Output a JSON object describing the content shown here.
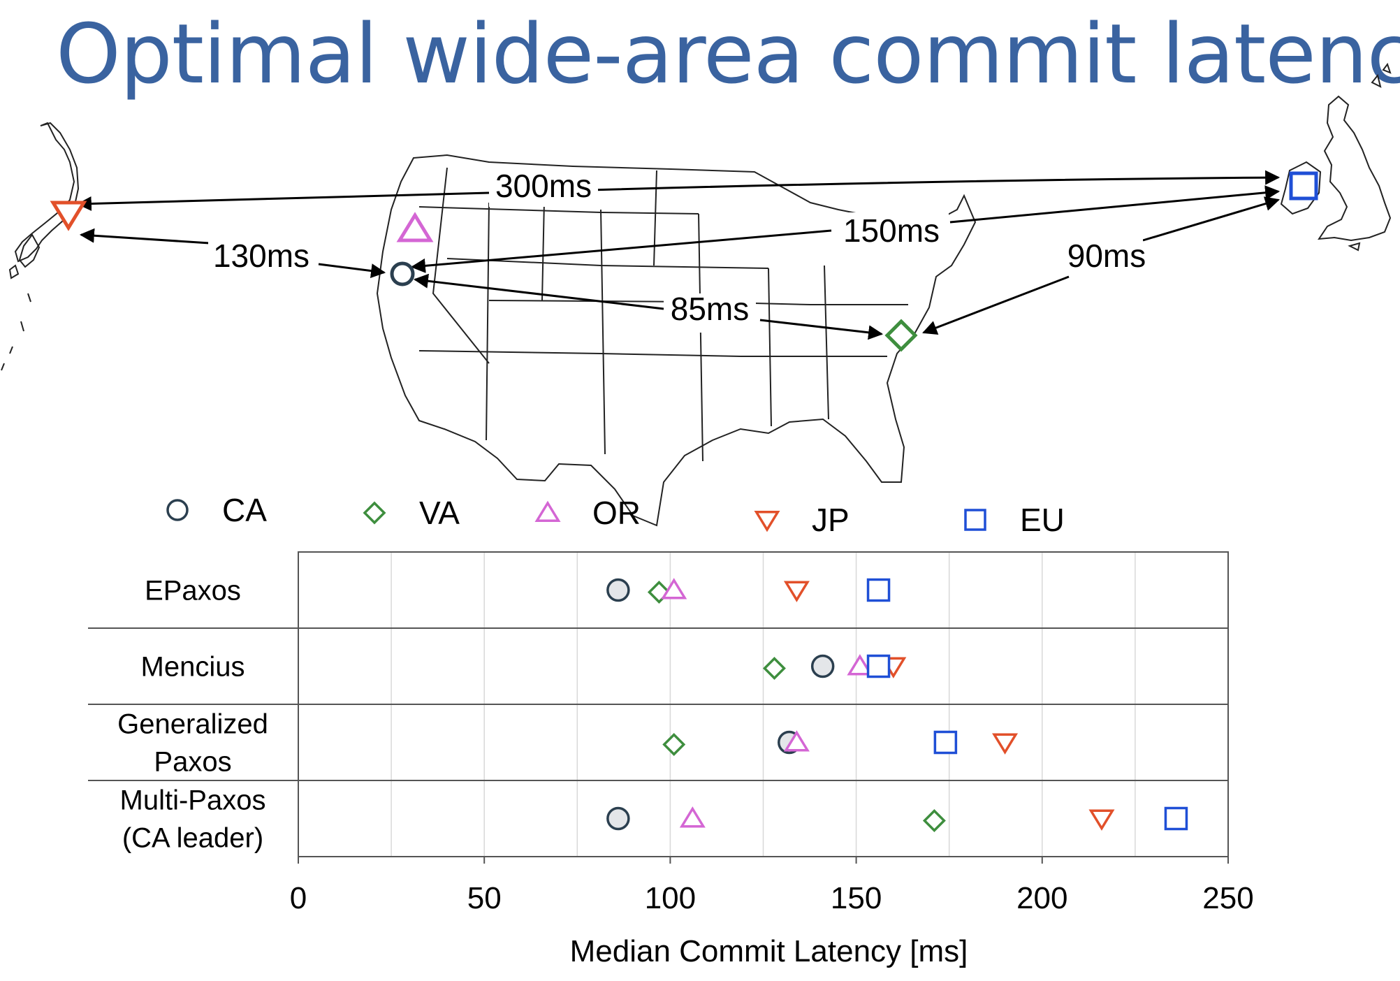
{
  "title": "Optimal wide-area commit latency",
  "colors": {
    "title": "#3a63a0",
    "CA": "#2b3f4f",
    "VA": "#3e8e3e",
    "OR": "#d466d4",
    "JP": "#e2502a",
    "EU": "#1f4fd6"
  },
  "map": {
    "sites": [
      {
        "id": "JP",
        "shape": "triangle-down"
      },
      {
        "id": "OR",
        "shape": "triangle-up"
      },
      {
        "id": "CA",
        "shape": "circle"
      },
      {
        "id": "VA",
        "shape": "diamond"
      },
      {
        "id": "EU",
        "shape": "square"
      }
    ],
    "links": [
      {
        "from": "JP",
        "to": "EU",
        "label": "300ms"
      },
      {
        "from": "CA",
        "to": "EU",
        "label": "150ms"
      },
      {
        "from": "JP",
        "to": "CA",
        "label": "130ms"
      },
      {
        "from": "VA",
        "to": "EU",
        "label": "90ms"
      },
      {
        "from": "CA",
        "to": "VA",
        "label": "85ms"
      }
    ]
  },
  "chart_data": {
    "type": "scatter",
    "xlabel": "Median Commit Latency [ms]",
    "ylabel": "",
    "xlim": [
      0,
      250
    ],
    "xticks": [
      0,
      50,
      100,
      150,
      200,
      250
    ],
    "categories": [
      "EPaxos",
      "Mencius",
      "Generalized Paxos",
      "Multi-Paxos (CA leader)"
    ],
    "grid": true,
    "legend": {
      "placement": "top",
      "entries": [
        {
          "name": "CA",
          "marker": "circle"
        },
        {
          "name": "VA",
          "marker": "diamond"
        },
        {
          "name": "OR",
          "marker": "triangle-up"
        },
        {
          "name": "JP",
          "marker": "triangle-down"
        },
        {
          "name": "EU",
          "marker": "square"
        }
      ]
    },
    "series": [
      {
        "name": "CA",
        "values": [
          86,
          141,
          132,
          86
        ]
      },
      {
        "name": "VA",
        "values": [
          97,
          128,
          101,
          171
        ]
      },
      {
        "name": "OR",
        "values": [
          101,
          151,
          134,
          106
        ]
      },
      {
        "name": "JP",
        "values": [
          134,
          160,
          190,
          216
        ]
      },
      {
        "name": "EU",
        "values": [
          156,
          156,
          174,
          236
        ]
      }
    ]
  }
}
